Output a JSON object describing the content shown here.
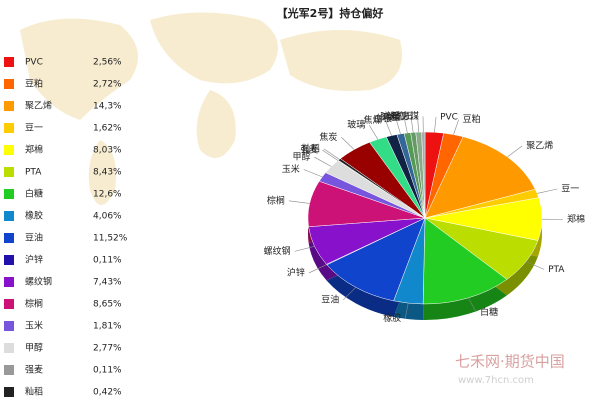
{
  "chart_data": {
    "type": "pie",
    "title": "【光军2号】持仓偏好",
    "categories": [
      "PVC",
      "豆粕",
      "聚乙烯",
      "豆一",
      "郑棉",
      "PTA",
      "白糖",
      "橡胶",
      "豆油",
      "沪锌",
      "螺纹钢",
      "棕榈",
      "玉米",
      "甲醇",
      "强麦",
      "籼稻",
      "焦炭",
      "玻璃",
      "焦煤",
      "白银",
      "鸡蛋",
      "胶合板",
      "铁矿石",
      "动力煤"
    ],
    "values": [
      2.56,
      2.72,
      14.3,
      1.62,
      8.03,
      8.43,
      12.6,
      4.06,
      11.52,
      0.11,
      7.43,
      8.65,
      1.81,
      2.77,
      0.11,
      0.42,
      5,
      2.5,
      1.5,
      1,
      0.9,
      0.7,
      0.8,
      0.46
    ],
    "value_labels": [
      "2,56%",
      "2,72%",
      "14,3%",
      "1,62%",
      "8,03%",
      "8,43%",
      "12,6%",
      "4,06%",
      "11,52%",
      "0,11%",
      "7,43%",
      "8,65%",
      "1,81%",
      "2,77%",
      "0,11%",
      "0,42%",
      null,
      null,
      null,
      null,
      null,
      null,
      null,
      null
    ],
    "colors": [
      "#ee1111",
      "#ff6600",
      "#ff9900",
      "#ffcc00",
      "#ffff00",
      "#bbdd00",
      "#22cc22",
      "#1188cc",
      "#1144cc",
      "#2211aa",
      "#8811cc",
      "#cc1177",
      "#7755dd",
      "#dddddd",
      "#999999",
      "#222222",
      "#990000",
      "#33dd88",
      "#112244",
      "#336699",
      "#559955",
      "#669966",
      "#88aa88",
      "#aaaaaa"
    ],
    "watermark": "七禾网·期货中国",
    "watermark_url": "www.7hcn.com"
  }
}
